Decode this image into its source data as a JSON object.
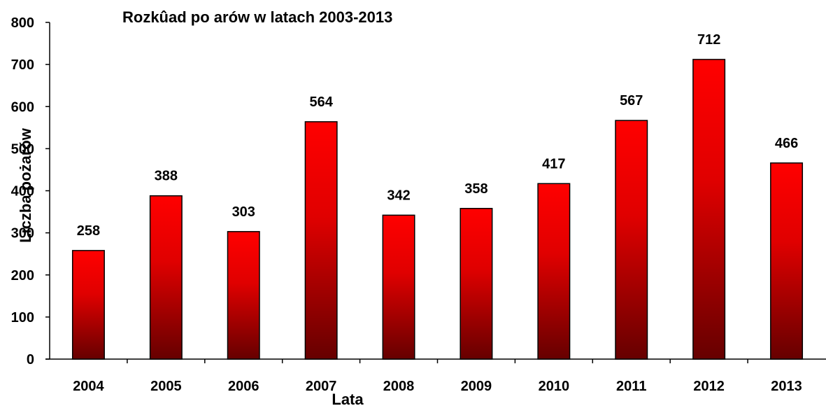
{
  "chart_data": {
    "type": "bar",
    "title": "Rozkûad po  arów w latach 2003-2013",
    "xlabel": "Lata",
    "ylabel": "Liczba pożarów",
    "categories": [
      "2004",
      "2005",
      "2006",
      "2007",
      "2008",
      "2009",
      "2010",
      "2011",
      "2012",
      "2013"
    ],
    "values": [
      258,
      388,
      303,
      564,
      342,
      358,
      417,
      567,
      712,
      466
    ],
    "ylim": [
      0,
      800
    ],
    "yticks": [
      0,
      100,
      200,
      300,
      400,
      500,
      600,
      700,
      800
    ],
    "grid": false,
    "legend": "none",
    "bar_color_top": "#ff0000",
    "bar_color_bottom": "#660000"
  }
}
